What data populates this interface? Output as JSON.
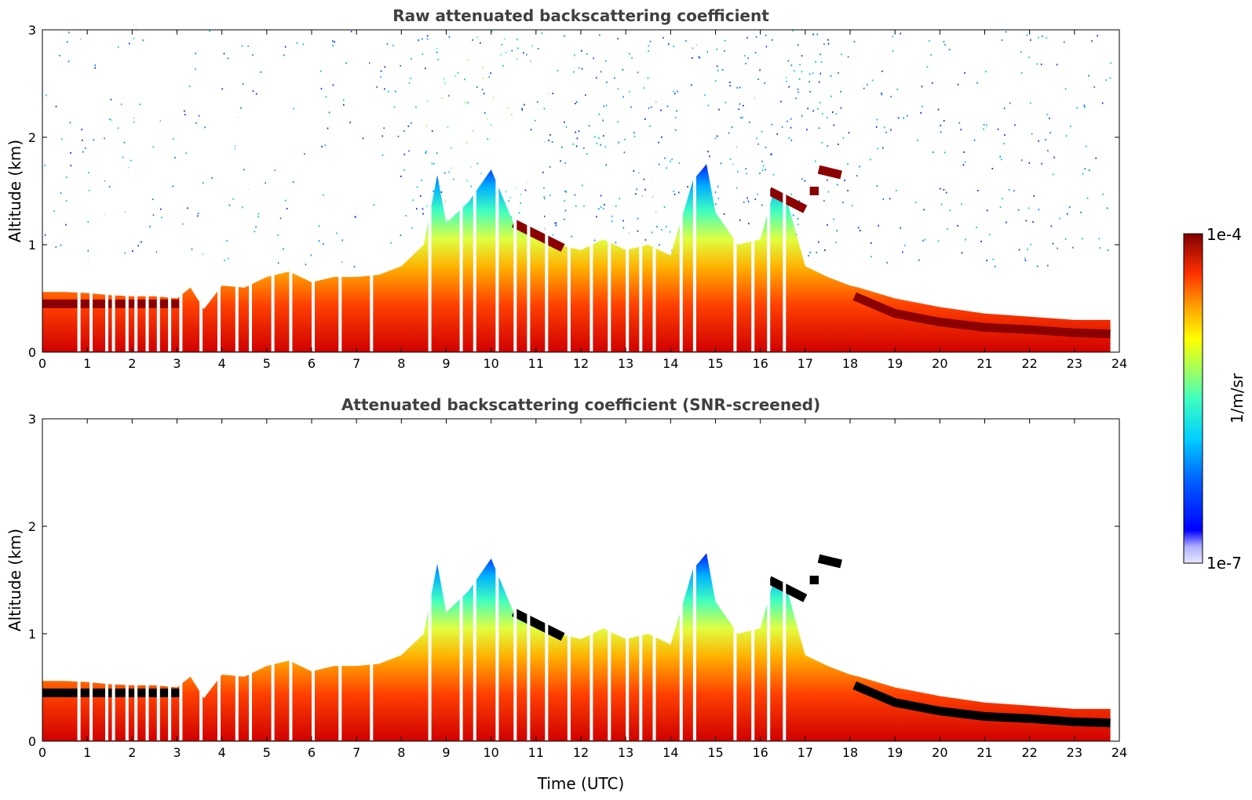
{
  "chart_data": [
    {
      "type": "heatmap",
      "title": "Raw attenuated backscattering coefficient",
      "xlabel": "",
      "ylabel": "Altitude (km)",
      "xlim": [
        0,
        24
      ],
      "ylim": [
        0,
        3
      ],
      "xticks": [
        0,
        1,
        2,
        3,
        4,
        5,
        6,
        7,
        8,
        9,
        10,
        11,
        12,
        13,
        14,
        15,
        16,
        17,
        18,
        19,
        20,
        21,
        22,
        23,
        24
      ],
      "yticks": [
        0,
        1,
        2,
        3
      ],
      "screened": false,
      "boundary_layer_top_km": {
        "x": [
          0,
          0.5,
          1,
          1.5,
          2,
          2.5,
          3,
          3.3,
          3.6,
          4,
          4.5,
          5,
          5.5,
          6,
          6.5,
          7,
          7.5,
          8,
          8.5,
          8.8,
          9,
          9.5,
          10,
          10.5,
          11,
          11.5,
          12,
          12.5,
          13,
          13.5,
          14,
          14.5,
          14.8,
          15,
          15.5,
          16,
          16.3,
          16.6,
          17,
          17.5,
          18,
          18.2,
          19,
          20,
          21,
          22,
          23,
          23.8
        ],
        "y": [
          0.56,
          0.56,
          0.55,
          0.53,
          0.52,
          0.52,
          0.5,
          0.6,
          0.4,
          0.62,
          0.6,
          0.7,
          0.75,
          0.65,
          0.7,
          0.7,
          0.72,
          0.8,
          1.0,
          1.65,
          1.2,
          1.4,
          1.7,
          1.2,
          1.1,
          1.0,
          0.95,
          1.05,
          0.95,
          1.0,
          0.9,
          1.6,
          1.75,
          1.3,
          1.0,
          1.05,
          1.5,
          1.4,
          0.8,
          0.7,
          0.62,
          0.6,
          0.5,
          0.42,
          0.36,
          0.33,
          0.3,
          0.3
        ]
      },
      "cloud_layers_km": [
        {
          "x": [
            0,
            3.1
          ],
          "y": [
            0.45,
            0.45
          ]
        },
        {
          "x": [
            10.5,
            11.6
          ],
          "y": [
            1.2,
            0.97
          ]
        },
        {
          "x": [
            16.2,
            17.0
          ],
          "y": [
            1.5,
            1.33
          ]
        },
        {
          "x": [
            17.1,
            17.3
          ],
          "y": [
            1.5,
            1.5
          ]
        },
        {
          "x": [
            17.3,
            17.8
          ],
          "y": [
            1.7,
            1.65
          ]
        },
        {
          "x": [
            18.1,
            19,
            20,
            21,
            22,
            23,
            23.8
          ],
          "y": [
            0.52,
            0.36,
            0.28,
            0.23,
            0.21,
            0.18,
            0.17
          ]
        }
      ]
    },
    {
      "type": "heatmap",
      "title": "Attenuated backscattering coefficient (SNR-screened)",
      "xlabel": "Time (UTC)",
      "ylabel": "Altitude (km)",
      "xlim": [
        0,
        24
      ],
      "ylim": [
        0,
        3
      ],
      "xticks": [
        0,
        1,
        2,
        3,
        4,
        5,
        6,
        7,
        8,
        9,
        10,
        11,
        12,
        13,
        14,
        15,
        16,
        17,
        18,
        19,
        20,
        21,
        22,
        23,
        24
      ],
      "yticks": [
        0,
        1,
        2,
        3
      ],
      "screened": true,
      "boundary_layer_top_km": {
        "x": [
          0,
          0.5,
          1,
          1.5,
          2,
          2.5,
          3,
          3.3,
          3.6,
          4,
          4.5,
          5,
          5.5,
          6,
          6.5,
          7,
          7.5,
          8,
          8.5,
          8.8,
          9,
          9.5,
          10,
          10.5,
          11,
          11.5,
          12,
          12.5,
          13,
          13.5,
          14,
          14.5,
          14.8,
          15,
          15.5,
          16,
          16.3,
          16.6,
          17,
          17.5,
          18,
          18.2,
          19,
          20,
          21,
          22,
          23,
          23.8
        ],
        "y": [
          0.56,
          0.56,
          0.55,
          0.53,
          0.52,
          0.52,
          0.5,
          0.6,
          0.4,
          0.62,
          0.6,
          0.7,
          0.75,
          0.65,
          0.7,
          0.7,
          0.72,
          0.8,
          1.0,
          1.65,
          1.2,
          1.4,
          1.7,
          1.2,
          1.1,
          1.0,
          0.95,
          1.05,
          0.95,
          1.0,
          0.9,
          1.6,
          1.75,
          1.3,
          1.0,
          1.05,
          1.5,
          1.4,
          0.8,
          0.7,
          0.62,
          0.6,
          0.5,
          0.42,
          0.36,
          0.33,
          0.3,
          0.3
        ]
      },
      "cloud_layers_km": [
        {
          "x": [
            0,
            3.1
          ],
          "y": [
            0.45,
            0.45
          ]
        },
        {
          "x": [
            10.5,
            11.6
          ],
          "y": [
            1.2,
            0.97
          ]
        },
        {
          "x": [
            16.2,
            17.0
          ],
          "y": [
            1.5,
            1.33
          ]
        },
        {
          "x": [
            17.1,
            17.3
          ],
          "y": [
            1.5,
            1.5
          ]
        },
        {
          "x": [
            17.3,
            17.8
          ],
          "y": [
            1.7,
            1.65
          ]
        },
        {
          "x": [
            18.1,
            19,
            20,
            21,
            22,
            23,
            23.8
          ],
          "y": [
            0.52,
            0.36,
            0.28,
            0.23,
            0.21,
            0.18,
            0.17
          ]
        }
      ]
    }
  ],
  "colorbar": {
    "max_label": "1e-4",
    "min_label": "1e-7",
    "label": "1/m/sr",
    "colors": [
      "#e8e8ff",
      "#c8c8ff",
      "#a0a0ff",
      "#0000ff",
      "#0050ff",
      "#00a0ff",
      "#00e0ff",
      "#40ffc0",
      "#a0ff60",
      "#ffff00",
      "#ffc000",
      "#ff8000",
      "#ff3000",
      "#d00000",
      "#800000"
    ]
  }
}
